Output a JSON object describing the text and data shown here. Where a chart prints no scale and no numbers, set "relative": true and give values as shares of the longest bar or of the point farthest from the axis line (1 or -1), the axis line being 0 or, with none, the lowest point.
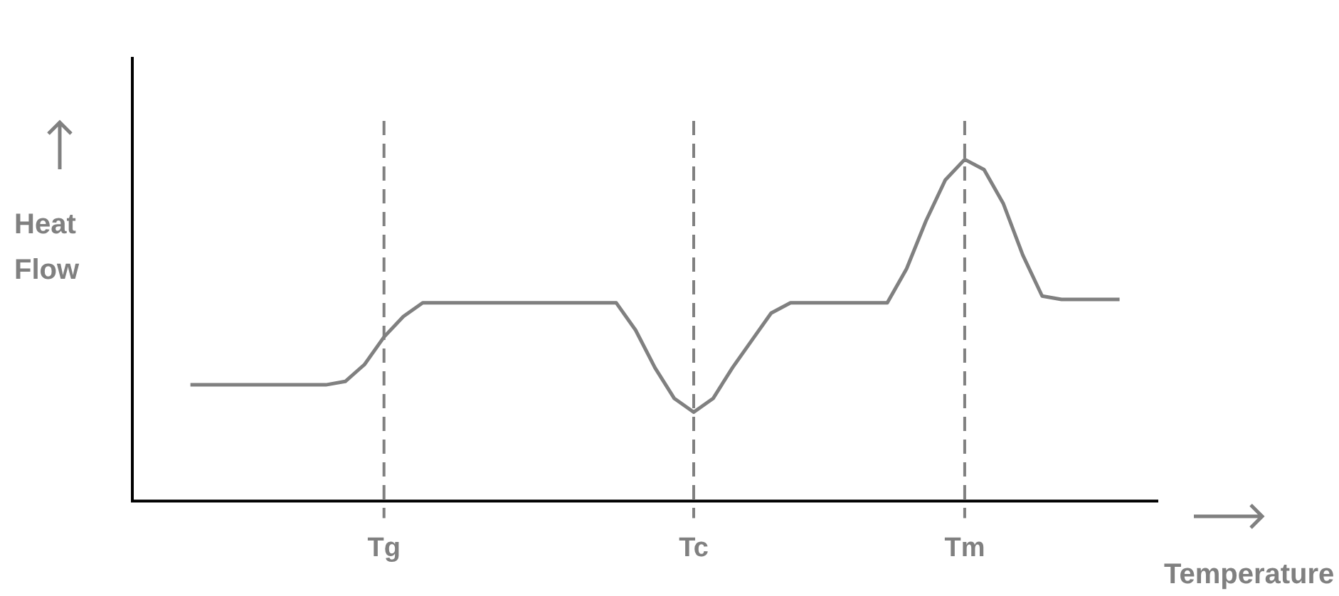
{
  "chart_data": {
    "type": "line",
    "relative": true,
    "xlabel": "Temperature",
    "ylabel": "Heat Flow",
    "marker": "none",
    "line_style": "solid",
    "categories": [
      null,
      null,
      null,
      null,
      null,
      null,
      null,
      null,
      null,
      null,
      null,
      null,
      null,
      "Tg",
      null,
      null,
      null,
      null,
      null,
      null,
      null,
      null,
      null,
      null,
      null,
      null,
      null,
      null,
      null,
      "Tc",
      null,
      null,
      null,
      null,
      null,
      null,
      null,
      null,
      null,
      null,
      null,
      null,
      null,
      "Tm",
      null,
      null,
      null,
      null,
      null,
      null,
      null,
      null,
      null,
      null
    ],
    "series": [
      {
        "color": "#808080",
        "values": [
          null,
          null,
          null,
          0.34,
          0.34,
          0.34,
          0.34,
          0.34,
          0.34,
          0.34,
          0.34,
          0.35,
          0.4,
          0.48,
          0.54,
          0.58,
          0.58,
          0.58,
          0.58,
          0.58,
          0.58,
          0.58,
          0.58,
          0.58,
          0.58,
          0.58,
          0.5,
          0.39,
          0.3,
          0.26,
          0.3,
          0.39,
          0.47,
          0.55,
          0.58,
          0.58,
          0.58,
          0.58,
          0.58,
          0.58,
          0.68,
          0.82,
          0.94,
          1,
          0.97,
          0.87,
          0.72,
          0.6,
          0.59,
          0.59,
          0.59,
          0.59,
          null,
          null
        ]
      }
    ],
    "ref_lines": [
      {
        "axis": "x",
        "value": "Tg",
        "color": "#808080",
        "line_style": "dashed"
      },
      {
        "axis": "x",
        "value": "Tc",
        "color": "#808080",
        "line_style": "dashed"
      },
      {
        "axis": "x",
        "value": "Tm",
        "color": "#808080",
        "line_style": "dashed"
      }
    ]
  }
}
